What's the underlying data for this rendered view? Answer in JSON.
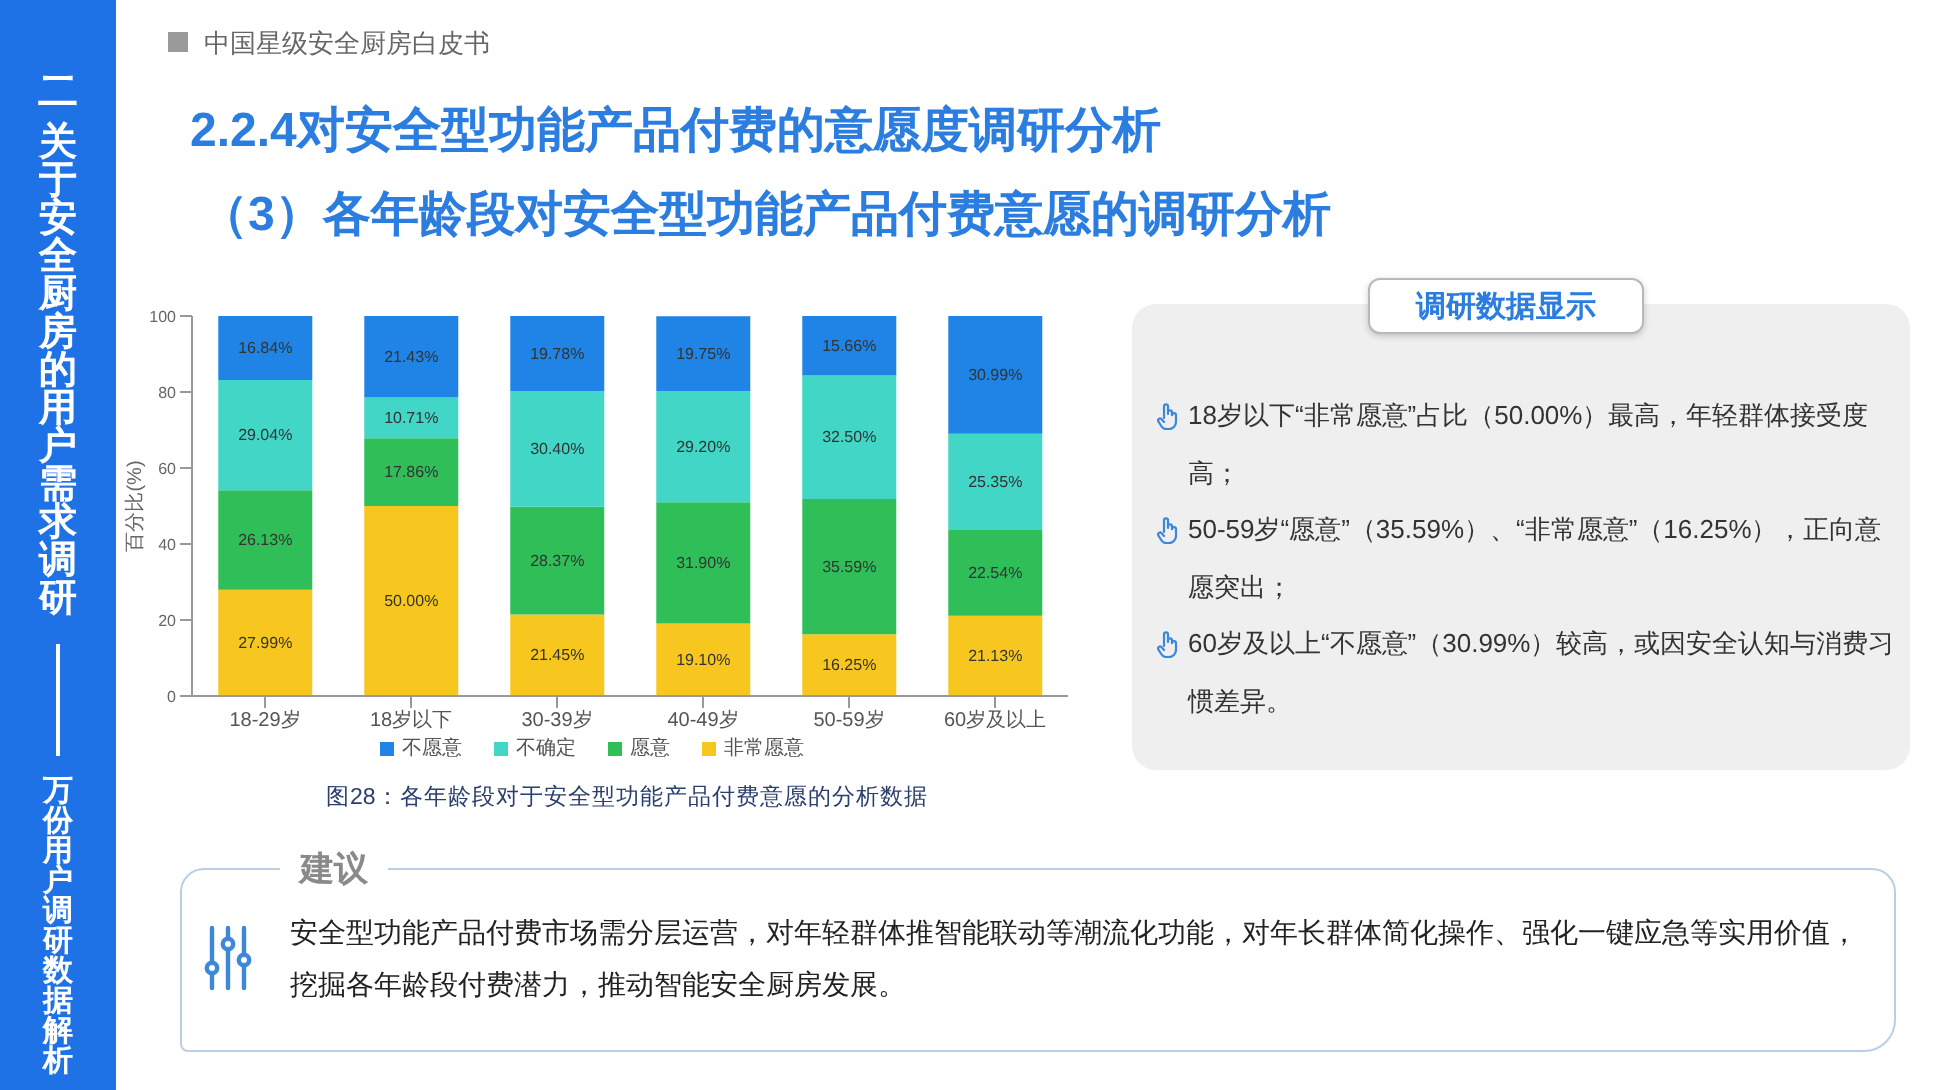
{
  "chart_data": {
    "type": "bar",
    "title": "2.2.4对安全型功能产品付费的意愿度调研分析",
    "subtitle": "（3）各年龄段对安全型功能产品付费意愿的调研分析",
    "ylabel": "百分比(%)",
    "categories": [
      "18-29岁",
      "18岁以下",
      "30-39岁",
      "40-49岁",
      "50-59岁",
      "60岁及以上"
    ],
    "series": [
      {
        "name": "非常愿意",
        "color": "#f7c720",
        "values": [
          27.99,
          50.0,
          21.45,
          19.1,
          16.25,
          21.13
        ],
        "value_labels": [
          "27.99%",
          "50.00%",
          "21.45%",
          "19.10%",
          "16.25%",
          "21.13%"
        ]
      },
      {
        "name": "愿意",
        "color": "#2fbe58",
        "values": [
          26.13,
          17.86,
          28.37,
          31.9,
          35.59,
          22.54
        ],
        "value_labels": [
          "26.13%",
          "17.86%",
          "28.37%",
          "31.90%",
          "35.59%",
          "22.54%"
        ]
      },
      {
        "name": "不确定",
        "color": "#41d6c5",
        "values": [
          29.04,
          10.71,
          30.4,
          29.2,
          32.5,
          25.35
        ],
        "value_labels": [
          "29.04%",
          "10.71%",
          "30.40%",
          "29.20%",
          "32.50%",
          "25.35%"
        ]
      },
      {
        "name": "不愿意",
        "color": "#1f84e5",
        "values": [
          16.84,
          21.43,
          19.78,
          19.75,
          15.66,
          30.99
        ],
        "value_labels": [
          "16.84%",
          "21.43%",
          "19.78%",
          "19.75%",
          "15.66%",
          "30.99%"
        ]
      }
    ],
    "stacked": true,
    "ylim": [
      0,
      100
    ],
    "yticks": [
      0,
      20,
      40,
      60,
      80,
      100
    ],
    "legend": "bottom",
    "annotations": [
      "中国星级安全厨房白皮书",
      "二",
      "关于安全厨房的用户需求调研",
      "万份用户调研数据解析",
      "图28：各年龄段对于安全型功能产品付费意愿的分析数据",
      "调研数据显示",
      "18岁以下“非常愿意”占比（50.00%）最高，年轻群体接受度高；",
      "50-59岁“愿意”（35.59%）、“非常愿意”（16.25%），正向意愿突出；",
      "60岁及以上“不愿意”（30.99%）较高，或因安全认知与消费习惯差异。",
      "建议",
      "安全型功能产品付费市场需分层运营，对年轻群体推智能联动等潮流化功能，对年长群体简化操作、强化一键应急等实用价值，挖掘各年龄段付费潜力，推动智能安全厨房发展。"
    ]
  }
}
